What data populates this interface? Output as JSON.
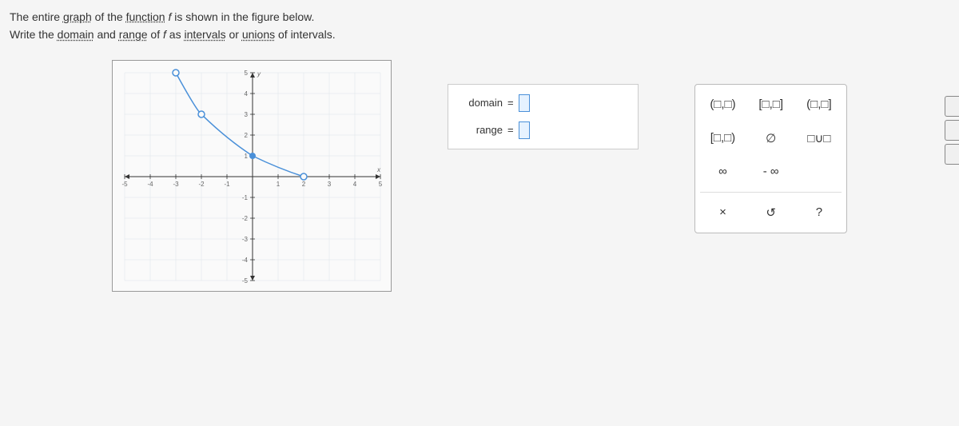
{
  "question": {
    "line1_parts": [
      "The entire ",
      "graph",
      " of the ",
      "function",
      " ",
      "f",
      " is shown in the figure below."
    ],
    "line2_parts": [
      "Write the ",
      "domain",
      " and ",
      "range",
      " of ",
      "f",
      " as ",
      "intervals",
      " or ",
      "unions",
      " of intervals."
    ]
  },
  "graph": {
    "xmin": -5,
    "xmax": 5,
    "ymin": -5,
    "ymax": 5,
    "xtick_step": 1,
    "ytick_step": 1,
    "background": "#fafafa",
    "grid_color": "#dde3e8",
    "axis_color": "#333333",
    "curve_color": "#4a90d9",
    "curve_points": [
      {
        "x": -3,
        "y": 5,
        "open": true
      },
      {
        "x": -2,
        "y": 3,
        "open": true
      },
      {
        "x": 0,
        "y": 1,
        "solid": true
      },
      {
        "x": 2,
        "y": 0,
        "open": true
      }
    ],
    "xlabel": "x",
    "ylabel": "y"
  },
  "answers": {
    "domain_label": "domain",
    "range_label": "range",
    "equals": "=",
    "domain_value": "",
    "range_value": ""
  },
  "keypad": {
    "open_open": "(□,□)",
    "closed_closed": "[□,□]",
    "open_closed": "(□,□]",
    "closed_open": "[□,□)",
    "empty_set": "∅",
    "union": "□∪□",
    "infinity": "∞",
    "neg_infinity": "- ∞",
    "clear": "×",
    "undo": "↺",
    "help": "?"
  }
}
